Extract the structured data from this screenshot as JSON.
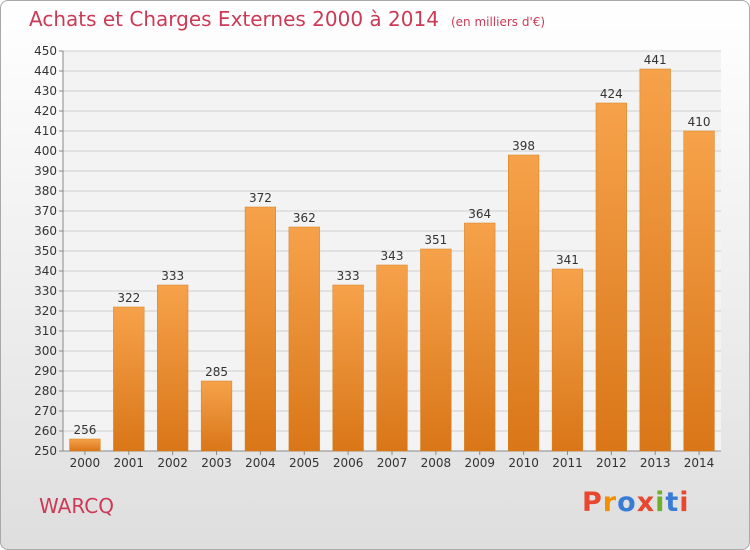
{
  "title": "Achats et Charges Externes 2000 à 2014",
  "unit_note": "(en milliers d'€)",
  "place": "WARCQ",
  "brand": "Proxiti",
  "brand_colors": [
    "#e8482f",
    "#f29100",
    "#3a7bd5",
    "#e8482f",
    "#6fb02a",
    "#3a7bd5",
    "#e8482f"
  ],
  "colors": {
    "bar": "#f09030",
    "title": "#cc3a56"
  },
  "chart_data": {
    "type": "bar",
    "categories": [
      "2000",
      "2001",
      "2002",
      "2003",
      "2004",
      "2005",
      "2006",
      "2007",
      "2008",
      "2009",
      "2010",
      "2011",
      "2012",
      "2013",
      "2014"
    ],
    "values": [
      256,
      322,
      333,
      285,
      372,
      362,
      333,
      343,
      351,
      364,
      398,
      341,
      424,
      441,
      410
    ],
    "yticks": [
      250,
      260,
      270,
      280,
      290,
      300,
      310,
      320,
      330,
      340,
      350,
      360,
      370,
      380,
      390,
      400,
      410,
      420,
      430,
      440,
      450
    ],
    "ylim": [
      250,
      450
    ],
    "grid": true
  }
}
